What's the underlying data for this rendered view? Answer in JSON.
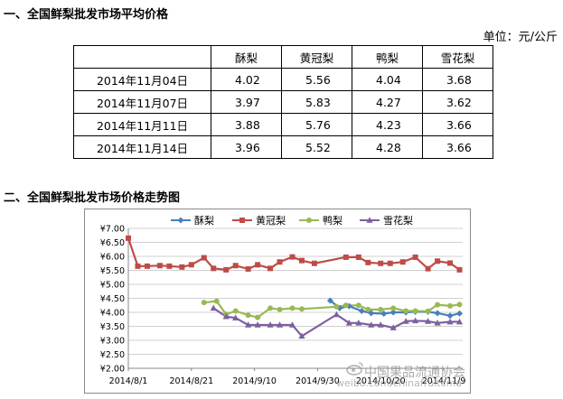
{
  "section1": {
    "title": "一、全国鲜梨批发市场平均价格",
    "unit": "单位：元/公斤"
  },
  "table": {
    "headers": [
      "",
      "酥梨",
      "黄冠梨",
      "鸭梨",
      "雪花梨"
    ],
    "rows": [
      {
        "date": "2014年11月04日",
        "values": [
          "4.02",
          "5.56",
          "4.04",
          "3.68"
        ]
      },
      {
        "date": "2014年11月07日",
        "values": [
          "3.97",
          "5.83",
          "4.27",
          "3.62"
        ]
      },
      {
        "date": "2014年11月11日",
        "values": [
          "3.88",
          "5.76",
          "4.23",
          "3.66"
        ]
      },
      {
        "date": "2014年11月14日",
        "values": [
          "3.96",
          "5.52",
          "4.28",
          "3.66"
        ]
      }
    ]
  },
  "section2": {
    "title": "二、全国鲜梨批发市场价格走势图"
  },
  "watermark": {
    "line1": "中国果品流通协会",
    "line2": "weibo.com/chinafruitcma"
  },
  "chart_data": {
    "type": "line",
    "title": "",
    "xlabel": "",
    "ylabel": "",
    "ylim": [
      2,
      7
    ],
    "y_ticks": [
      "¥7.00",
      "¥6.50",
      "¥6.00",
      "¥5.50",
      "¥5.00",
      "¥4.50",
      "¥4.00",
      "¥3.50",
      "¥3.00",
      "¥2.50",
      "¥2.00"
    ],
    "x_ticks": [
      "2014/8/1",
      "2014/8/21",
      "2014/9/10",
      "2014/9/30",
      "2014/10/20",
      "2014/11/9"
    ],
    "x_range": [
      "2014-08-01",
      "2014-11-15"
    ],
    "legend_position": "top",
    "grid": true,
    "series": [
      {
        "name": "酥梨",
        "color": "#4a7ebb",
        "marker": "diamond",
        "points": [
          [
            "2014-10-04",
            4.42
          ],
          [
            "2014-10-07",
            4.15
          ],
          [
            "2014-10-10",
            4.22
          ],
          [
            "2014-10-14",
            4.05
          ],
          [
            "2014-10-17",
            3.97
          ],
          [
            "2014-10-21",
            3.95
          ],
          [
            "2014-10-24",
            4.0
          ],
          [
            "2014-10-28",
            4.0
          ],
          [
            "2014-10-31",
            4.02
          ],
          [
            "2014-11-04",
            4.02
          ],
          [
            "2014-11-07",
            3.97
          ],
          [
            "2014-11-11",
            3.88
          ],
          [
            "2014-11-14",
            3.96
          ]
        ]
      },
      {
        "name": "黄冠梨",
        "color": "#be4b48",
        "marker": "square",
        "points": [
          [
            "2014-08-01",
            6.65
          ],
          [
            "2014-08-04",
            5.65
          ],
          [
            "2014-08-07",
            5.65
          ],
          [
            "2014-08-11",
            5.67
          ],
          [
            "2014-08-14",
            5.65
          ],
          [
            "2014-08-18",
            5.62
          ],
          [
            "2014-08-21",
            5.7
          ],
          [
            "2014-08-25",
            5.95
          ],
          [
            "2014-08-28",
            5.57
          ],
          [
            "2014-09-01",
            5.52
          ],
          [
            "2014-09-04",
            5.67
          ],
          [
            "2014-09-08",
            5.55
          ],
          [
            "2014-09-11",
            5.7
          ],
          [
            "2014-09-15",
            5.57
          ],
          [
            "2014-09-18",
            5.8
          ],
          [
            "2014-09-22",
            5.98
          ],
          [
            "2014-09-25",
            5.85
          ],
          [
            "2014-09-29",
            5.75
          ],
          [
            "2014-10-09",
            5.97
          ],
          [
            "2014-10-13",
            5.97
          ],
          [
            "2014-10-16",
            5.78
          ],
          [
            "2014-10-20",
            5.75
          ],
          [
            "2014-10-23",
            5.75
          ],
          [
            "2014-10-27",
            5.8
          ],
          [
            "2014-10-31",
            5.97
          ],
          [
            "2014-11-04",
            5.56
          ],
          [
            "2014-11-07",
            5.83
          ],
          [
            "2014-11-11",
            5.76
          ],
          [
            "2014-11-14",
            5.52
          ]
        ]
      },
      {
        "name": "鸭梨",
        "color": "#98b954",
        "marker": "circle",
        "points": [
          [
            "2014-08-25",
            4.35
          ],
          [
            "2014-08-29",
            4.4
          ],
          [
            "2014-09-01",
            3.93
          ],
          [
            "2014-09-04",
            4.05
          ],
          [
            "2014-09-08",
            3.9
          ],
          [
            "2014-09-11",
            3.82
          ],
          [
            "2014-09-15",
            4.15
          ],
          [
            "2014-09-18",
            4.1
          ],
          [
            "2014-09-22",
            4.15
          ],
          [
            "2014-09-25",
            4.12
          ],
          [
            "2014-10-06",
            4.2
          ],
          [
            "2014-10-09",
            4.25
          ],
          [
            "2014-10-13",
            4.25
          ],
          [
            "2014-10-16",
            4.1
          ],
          [
            "2014-10-20",
            4.1
          ],
          [
            "2014-10-24",
            4.15
          ],
          [
            "2014-10-28",
            4.05
          ],
          [
            "2014-10-31",
            4.05
          ],
          [
            "2014-11-04",
            4.04
          ],
          [
            "2014-11-07",
            4.27
          ],
          [
            "2014-11-11",
            4.23
          ],
          [
            "2014-11-14",
            4.28
          ]
        ]
      },
      {
        "name": "雪花梨",
        "color": "#7d60a0",
        "marker": "triangle",
        "points": [
          [
            "2014-08-28",
            4.15
          ],
          [
            "2014-09-01",
            3.85
          ],
          [
            "2014-09-04",
            3.8
          ],
          [
            "2014-09-08",
            3.55
          ],
          [
            "2014-09-11",
            3.55
          ],
          [
            "2014-09-15",
            3.55
          ],
          [
            "2014-09-18",
            3.55
          ],
          [
            "2014-09-22",
            3.55
          ],
          [
            "2014-09-25",
            3.15
          ],
          [
            "2014-10-06",
            3.92
          ],
          [
            "2014-10-10",
            3.62
          ],
          [
            "2014-10-13",
            3.62
          ],
          [
            "2014-10-17",
            3.55
          ],
          [
            "2014-10-20",
            3.55
          ],
          [
            "2014-10-24",
            3.45
          ],
          [
            "2014-10-28",
            3.68
          ],
          [
            "2014-10-31",
            3.7
          ],
          [
            "2014-11-04",
            3.68
          ],
          [
            "2014-11-07",
            3.62
          ],
          [
            "2014-11-11",
            3.66
          ],
          [
            "2014-11-14",
            3.66
          ]
        ]
      }
    ]
  }
}
